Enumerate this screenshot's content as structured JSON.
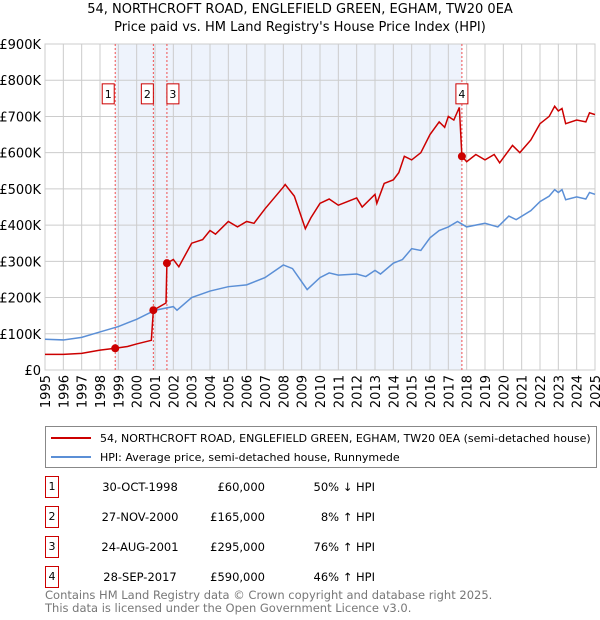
{
  "title": "54, NORTHCROFT ROAD, ENGLEFIELD GREEN, EGHAM, TW20 0EA",
  "subtitle": "Price paid vs. HM Land Registry's House Price Index (HPI)",
  "chart_data": {
    "type": "line",
    "xlim": [
      1995,
      2025
    ],
    "ylim": [
      0,
      900000
    ],
    "yticks": [
      "£0",
      "£100K",
      "£200K",
      "£300K",
      "£400K",
      "£500K",
      "£600K",
      "£700K",
      "£800K",
      "£900K"
    ],
    "xticks": [
      "1995",
      "1996",
      "1997",
      "1998",
      "1999",
      "2000",
      "2001",
      "2002",
      "2003",
      "2004",
      "2005",
      "2006",
      "2007",
      "2008",
      "2009",
      "2010",
      "2011",
      "2012",
      "2013",
      "2014",
      "2015",
      "2016",
      "2017",
      "2018",
      "2019",
      "2020",
      "2021",
      "2022",
      "2023",
      "2024",
      "2025"
    ],
    "series": [
      {
        "name": "54, NORTHCROFT ROAD, ENGLEFIELD GREEN, EGHAM, TW20 0EA (semi-detached house)",
        "color": "#cc0000",
        "points": [
          [
            1995,
            43
          ],
          [
            1996,
            43
          ],
          [
            1997,
            46
          ],
          [
            1998,
            55
          ],
          [
            1998.83,
            60
          ],
          [
            1999.5,
            65
          ],
          [
            2000,
            72
          ],
          [
            2000.8,
            82
          ],
          [
            2000.91,
            165
          ],
          [
            2001.6,
            185
          ],
          [
            2001.65,
            295
          ],
          [
            2002,
            305
          ],
          [
            2002.3,
            285
          ],
          [
            2003,
            350
          ],
          [
            2003.6,
            360
          ],
          [
            2004,
            385
          ],
          [
            2004.3,
            375
          ],
          [
            2005,
            410
          ],
          [
            2005.5,
            395
          ],
          [
            2006,
            410
          ],
          [
            2006.4,
            405
          ],
          [
            2007,
            445
          ],
          [
            2007.5,
            475
          ],
          [
            2008,
            505
          ],
          [
            2008.1,
            512
          ],
          [
            2008.6,
            480
          ],
          [
            2009.2,
            390
          ],
          [
            2009.5,
            420
          ],
          [
            2010,
            460
          ],
          [
            2010.5,
            472
          ],
          [
            2011,
            455
          ],
          [
            2011.5,
            465
          ],
          [
            2012,
            475
          ],
          [
            2012.3,
            450
          ],
          [
            2013,
            485
          ],
          [
            2013.1,
            460
          ],
          [
            2013.5,
            515
          ],
          [
            2014,
            525
          ],
          [
            2014.3,
            545
          ],
          [
            2014.6,
            590
          ],
          [
            2015,
            580
          ],
          [
            2015.5,
            600
          ],
          [
            2016,
            650
          ],
          [
            2016.5,
            685
          ],
          [
            2016.8,
            670
          ],
          [
            2017,
            700
          ],
          [
            2017.3,
            690
          ],
          [
            2017.6,
            725
          ],
          [
            2017.74,
            590
          ],
          [
            2018,
            575
          ],
          [
            2018.5,
            595
          ],
          [
            2019,
            580
          ],
          [
            2019.5,
            595
          ],
          [
            2019.8,
            572
          ],
          [
            2020.5,
            620
          ],
          [
            2020.9,
            600
          ],
          [
            2021.5,
            635
          ],
          [
            2022,
            680
          ],
          [
            2022.5,
            700
          ],
          [
            2022.8,
            728
          ],
          [
            2023,
            715
          ],
          [
            2023.2,
            722
          ],
          [
            2023.4,
            680
          ],
          [
            2024,
            690
          ],
          [
            2024.5,
            685
          ],
          [
            2024.7,
            710
          ],
          [
            2025,
            705
          ]
        ]
      },
      {
        "name": "HPI: Average price, semi-detached house, Runnymede",
        "color": "#5b8fd6",
        "points": [
          [
            1995,
            85
          ],
          [
            1996,
            83
          ],
          [
            1997,
            90
          ],
          [
            1998,
            105
          ],
          [
            1999,
            120
          ],
          [
            2000,
            140
          ],
          [
            2001,
            165
          ],
          [
            2002,
            175
          ],
          [
            2002.2,
            165
          ],
          [
            2003,
            200
          ],
          [
            2004,
            218
          ],
          [
            2005,
            230
          ],
          [
            2006,
            235
          ],
          [
            2007,
            255
          ],
          [
            2008,
            290
          ],
          [
            2008.5,
            280
          ],
          [
            2009.3,
            222
          ],
          [
            2010,
            255
          ],
          [
            2010.5,
            268
          ],
          [
            2011,
            262
          ],
          [
            2012,
            265
          ],
          [
            2012.5,
            258
          ],
          [
            2013,
            275
          ],
          [
            2013.3,
            265
          ],
          [
            2014,
            295
          ],
          [
            2014.5,
            305
          ],
          [
            2015,
            335
          ],
          [
            2015.5,
            330
          ],
          [
            2016,
            365
          ],
          [
            2016.5,
            385
          ],
          [
            2017,
            395
          ],
          [
            2017.5,
            410
          ],
          [
            2018,
            395
          ],
          [
            2019,
            405
          ],
          [
            2019.7,
            395
          ],
          [
            2020.3,
            425
          ],
          [
            2020.7,
            415
          ],
          [
            2021.5,
            440
          ],
          [
            2022,
            465
          ],
          [
            2022.5,
            480
          ],
          [
            2022.8,
            498
          ],
          [
            2023,
            490
          ],
          [
            2023.2,
            498
          ],
          [
            2023.4,
            470
          ],
          [
            2024,
            478
          ],
          [
            2024.5,
            472
          ],
          [
            2024.7,
            490
          ],
          [
            2025,
            485
          ]
        ]
      }
    ],
    "sales": [
      {
        "label": "1",
        "x": 1998.83,
        "y": 60000
      },
      {
        "label": "2",
        "x": 2000.91,
        "y": 165000
      },
      {
        "label": "3",
        "x": 2001.65,
        "y": 295000
      },
      {
        "label": "4",
        "x": 2017.74,
        "y": 590000
      }
    ]
  },
  "legend": {
    "red": "54, NORTHCROFT ROAD, ENGLEFIELD GREEN, EGHAM, TW20 0EA (semi-detached house)",
    "blue": "HPI: Average price, semi-detached house, Runnymede"
  },
  "table": [
    {
      "n": "1",
      "date": "30-OCT-1998",
      "price": "£60,000",
      "hpi": "50% ↓ HPI"
    },
    {
      "n": "2",
      "date": "27-NOV-2000",
      "price": "£165,000",
      "hpi": "8% ↑ HPI"
    },
    {
      "n": "3",
      "date": "24-AUG-2001",
      "price": "£295,000",
      "hpi": "76% ↑ HPI"
    },
    {
      "n": "4",
      "date": "28-SEP-2017",
      "price": "£590,000",
      "hpi": "46% ↑ HPI"
    }
  ],
  "footer": [
    "Contains HM Land Registry data © Crown copyright and database right 2025.",
    "This data is licensed under the Open Government Licence v3.0."
  ]
}
